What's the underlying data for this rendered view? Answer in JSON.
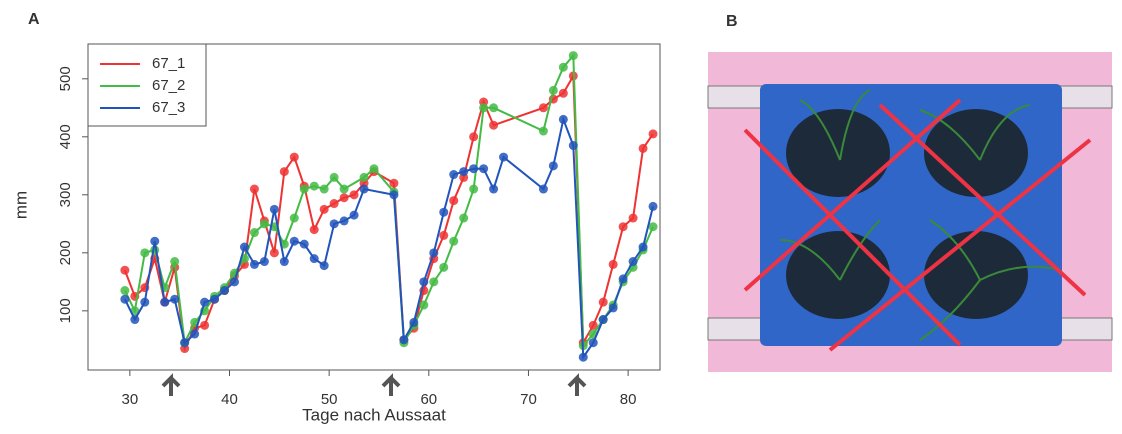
{
  "chart_data": {
    "type": "line",
    "panel_labels": [
      "A",
      "B"
    ],
    "ylabel": "mm",
    "xlabel": "Tage nach Aussaat",
    "xlim": [
      25.8,
      83.2
    ],
    "ylim": [
      -2,
      560
    ],
    "xticks": [
      30,
      40,
      50,
      60,
      70,
      80
    ],
    "yticks": [
      100,
      200,
      300,
      400,
      500
    ],
    "legend": "top-left",
    "series": [
      {
        "name": "67_1",
        "color": "#ee3333",
        "x": [
          29.5,
          30.5,
          31.5,
          32.5,
          33.5,
          34.5,
          35.5,
          36.5,
          37.5,
          38.5,
          39.5,
          40.5,
          41.5,
          42.5,
          43.5,
          44.5,
          45.5,
          46.5,
          47.5,
          48.5,
          49.5,
          50.5,
          51.5,
          52.5,
          53.5,
          54.5,
          56.5,
          57.5,
          58.5,
          59.5,
          60.5,
          61.5,
          62.5,
          63.5,
          64.5,
          65.5,
          66.5,
          71.5,
          72.5,
          73.5,
          74.5,
          75.5,
          76.5,
          77.5,
          78.5,
          79.5,
          80.5,
          81.5,
          82.5
        ],
        "values": [
          170,
          125,
          140,
          190,
          115,
          175,
          35,
          70,
          75,
          120,
          135,
          160,
          180,
          310,
          255,
          200,
          340,
          365,
          315,
          240,
          275,
          285,
          295,
          300,
          320,
          340,
          320,
          50,
          70,
          135,
          190,
          230,
          290,
          330,
          400,
          460,
          420,
          450,
          465,
          475,
          505,
          45,
          75,
          115,
          180,
          245,
          260,
          380,
          405
        ]
      },
      {
        "name": "67_2",
        "color": "#44bb44",
        "x": [
          29.5,
          30.5,
          31.5,
          32.5,
          33.5,
          34.5,
          35.5,
          36.5,
          37.5,
          38.5,
          39.5,
          40.5,
          41.5,
          42.5,
          43.5,
          44.5,
          45.5,
          46.5,
          47.5,
          48.5,
          49.5,
          50.5,
          51.5,
          53.5,
          54.5,
          56.5,
          57.5,
          58.5,
          59.5,
          60.5,
          61.5,
          62.5,
          63.5,
          64.5,
          65.5,
          66.5,
          71.5,
          72.5,
          73.5,
          74.5,
          75.5,
          76.5,
          77.5,
          78.5,
          79.5,
          80.5,
          81.5,
          82.5
        ],
        "values": [
          135,
          100,
          200,
          205,
          140,
          185,
          45,
          80,
          100,
          125,
          140,
          165,
          190,
          235,
          250,
          245,
          215,
          260,
          310,
          315,
          310,
          330,
          310,
          330,
          345,
          305,
          45,
          75,
          110,
          150,
          175,
          220,
          260,
          310,
          450,
          450,
          410,
          480,
          520,
          540,
          40,
          60,
          85,
          110,
          150,
          175,
          205,
          245
        ]
      },
      {
        "name": "67_3",
        "color": "#2255bb",
        "x": [
          29.5,
          30.5,
          31.5,
          32.5,
          33.5,
          34.5,
          35.5,
          36.5,
          37.5,
          38.5,
          39.5,
          40.5,
          41.5,
          42.5,
          43.5,
          44.5,
          45.5,
          46.5,
          47.5,
          48.5,
          49.5,
          50.5,
          51.5,
          52.5,
          53.5,
          56.5,
          57.5,
          58.5,
          59.5,
          60.5,
          61.5,
          62.5,
          63.5,
          64.5,
          65.5,
          66.5,
          67.5,
          71.5,
          72.5,
          73.5,
          74.5,
          75.5,
          76.5,
          77.5,
          78.5,
          79.5,
          80.5,
          81.5,
          82.5
        ],
        "values": [
          120,
          85,
          115,
          220,
          115,
          120,
          45,
          60,
          115,
          120,
          135,
          150,
          210,
          180,
          185,
          275,
          185,
          220,
          215,
          190,
          178,
          250,
          255,
          265,
          310,
          300,
          50,
          80,
          150,
          200,
          270,
          335,
          340,
          345,
          345,
          310,
          365,
          310,
          350,
          430,
          385,
          20,
          45,
          85,
          105,
          155,
          185,
          210,
          280
        ]
      }
    ]
  }
}
